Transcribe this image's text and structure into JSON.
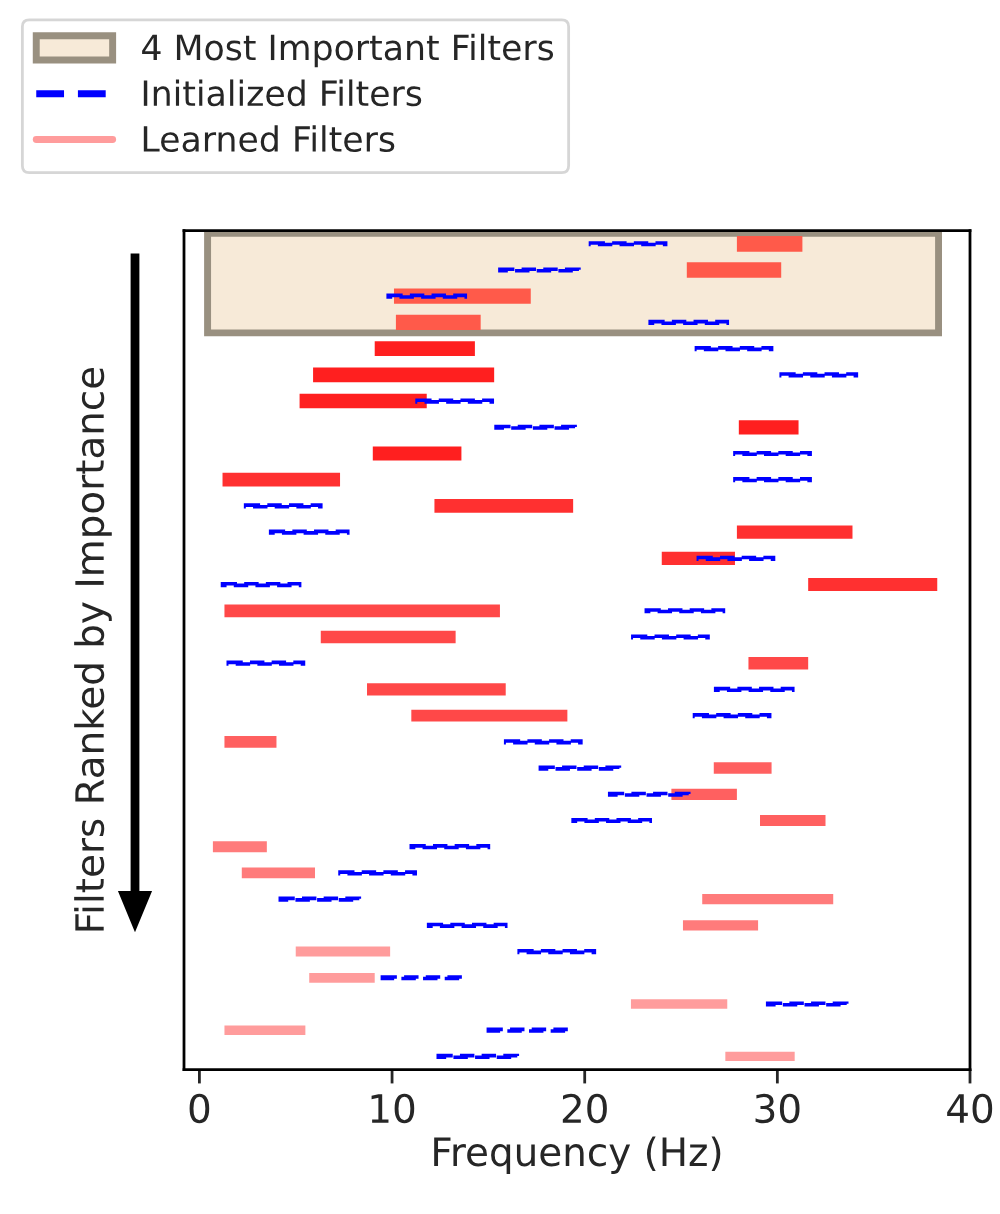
{
  "chart_data": {
    "type": "bar",
    "orientation": "horizontal",
    "xlabel": "Frequency (Hz)",
    "ylabel": "Filters Ranked by Importance",
    "categories": [
      null,
      null,
      null,
      null,
      null,
      null,
      null,
      null,
      null,
      null,
      null,
      null,
      null,
      null,
      null,
      null,
      null,
      null,
      null,
      null,
      null,
      null,
      null,
      null,
      null,
      null,
      null,
      null,
      null,
      null,
      null,
      null
    ],
    "xlim": [
      -0.8,
      40
    ],
    "xticks": [
      0,
      10,
      20,
      30,
      40
    ],
    "tick_labels": "x",
    "grid": false,
    "legend": "top left",
    "annotations": [
      "4 Most Important Filters"
    ],
    "series": [
      {
        "name": "Initialized Filters",
        "line_style": "dashed",
        "color": "#0000ff",
        "base": [
          20.3,
          15.6,
          9.8,
          23.4,
          25.8,
          30.2,
          11.3,
          15.4,
          27.8,
          27.8,
          2.4,
          3.7,
          25.9,
          1.2,
          23.2,
          22.5,
          1.5,
          26.8,
          25.7,
          15.9,
          17.7,
          21.3,
          19.4,
          11.0,
          7.3,
          4.2,
          11.9,
          16.6,
          9.5,
          29.5,
          15.0,
          12.4
        ],
        "values": [
          3.9,
          4.1,
          4.0,
          4.0,
          3.9,
          3.9,
          3.9,
          4.1,
          3.9,
          3.9,
          3.9,
          4.0,
          3.9,
          4.0,
          4.0,
          3.9,
          3.9,
          4.0,
          3.9,
          3.9,
          4.1,
          4.1,
          4.0,
          4.0,
          3.9,
          4.1,
          4.0,
          3.9,
          4.2,
          4.1,
          4.2,
          4.1
        ]
      },
      {
        "name": "Learned Filters",
        "line_style": "solid",
        "color": "#ff9c9c",
        "base": [
          27.9,
          25.3,
          10.1,
          10.2,
          9.1,
          5.9,
          5.2,
          28.0,
          9.0,
          1.2,
          12.2,
          27.9,
          24.0,
          31.6,
          1.3,
          6.3,
          28.5,
          8.7,
          11.0,
          1.3,
          26.7,
          24.5,
          29.1,
          0.7,
          2.2,
          26.1,
          25.1,
          5.0,
          5.7,
          22.4,
          1.3,
          27.3
        ],
        "values": [
          3.4,
          4.9,
          7.1,
          4.4,
          5.2,
          9.4,
          6.6,
          3.1,
          4.6,
          6.1,
          7.2,
          6.0,
          3.8,
          6.7,
          14.3,
          7.0,
          3.1,
          7.2,
          8.1,
          2.7,
          3.0,
          3.4,
          3.4,
          2.8,
          3.8,
          6.8,
          3.9,
          4.9,
          3.4,
          5.0,
          4.2,
          3.6
        ],
        "colors": [
          "#ff5a4a",
          "#ff5a4a",
          "#ff5a4a",
          "#ff5a4a",
          "#ff1f1f",
          "#ff1f1f",
          "#ff1f1f",
          "#ff1f1f",
          "#ff1f1f",
          "#ff3030",
          "#ff3030",
          "#ff3030",
          "#ff3030",
          "#ff3030",
          "#ff4848",
          "#ff4848",
          "#ff4848",
          "#ff4848",
          "#ff4848",
          "#ff6060",
          "#ff6060",
          "#ff6060",
          "#ff6060",
          "#ff7b7b",
          "#ff7b7b",
          "#ff7b7b",
          "#ff7b7b",
          "#ff9c9c",
          "#ff9c9c",
          "#ff9c9c",
          "#ff9c9c",
          "#ff9c9c"
        ]
      }
    ]
  }
}
